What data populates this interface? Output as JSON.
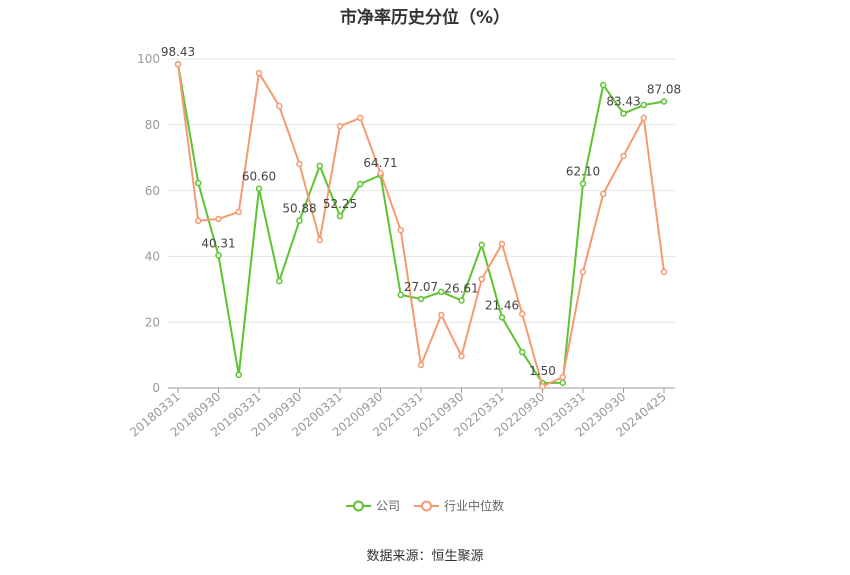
{
  "source": "数据来源：恒生聚源",
  "chart_data": {
    "type": "line",
    "title": "市净率历史分位（%）",
    "xlabel": "",
    "ylabel": "",
    "categories": [
      "20180331",
      "",
      "20180930",
      "",
      "20190331",
      "",
      "20190930",
      "",
      "20200331",
      "",
      "20200930",
      "",
      "20210331",
      "",
      "20210930",
      "",
      "20220331",
      "",
      "20220930",
      "",
      "20230331",
      "",
      "20230930",
      "",
      "20240425"
    ],
    "ylim": [
      0,
      100
    ],
    "yticks": [
      0,
      20,
      40,
      60,
      80,
      100
    ],
    "grid": true,
    "legend_position": "bottom",
    "series": [
      {
        "name": "公司",
        "color": "#5dc430",
        "values": [
          98.43,
          62.3,
          40.31,
          4.0,
          60.6,
          32.5,
          50.88,
          67.5,
          52.25,
          62.0,
          64.71,
          28.3,
          27.07,
          29.2,
          26.61,
          43.5,
          21.46,
          10.9,
          1.5,
          1.6,
          62.1,
          92.1,
          83.43,
          86.0,
          87.08
        ],
        "labels": [
          "98.43",
          "",
          "40.31",
          "",
          "60.60",
          "",
          "50.88",
          "",
          "52.25",
          "",
          "64.71",
          "",
          "27.07",
          "",
          "26.61",
          "",
          "21.46",
          "",
          "1.50",
          "",
          "62.10",
          "",
          "83.43",
          "",
          "87.08"
        ]
      },
      {
        "name": "行业中位数",
        "color": "#f59a72",
        "values": [
          98.4,
          50.8,
          51.4,
          53.5,
          95.7,
          85.7,
          68.1,
          45.0,
          79.6,
          82.1,
          65.3,
          48.0,
          7.0,
          22.2,
          9.7,
          33.1,
          43.8,
          22.5,
          0.5,
          3.3,
          35.3,
          59.0,
          70.5,
          82.1,
          35.3
        ]
      }
    ]
  }
}
